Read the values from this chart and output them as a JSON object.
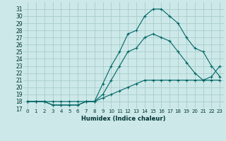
{
  "xlabel": "Humidex (Indice chaleur)",
  "background_color": "#cce8e8",
  "grid_color": "#aacccc",
  "line_color": "#006666",
  "xlim": [
    -0.5,
    23.5
  ],
  "ylim": [
    17,
    32
  ],
  "yticks": [
    17,
    18,
    19,
    20,
    21,
    22,
    23,
    24,
    25,
    26,
    27,
    28,
    29,
    30,
    31
  ],
  "xticks": [
    0,
    1,
    2,
    3,
    4,
    5,
    6,
    7,
    8,
    9,
    10,
    11,
    12,
    13,
    14,
    15,
    16,
    17,
    18,
    19,
    20,
    21,
    22,
    23
  ],
  "series": [
    {
      "x": [
        0,
        1,
        2,
        3,
        4,
        5,
        6,
        7,
        8,
        9,
        10,
        11,
        12,
        13,
        14,
        15,
        16,
        17,
        18,
        19,
        20,
        21,
        22,
        23
      ],
      "y": [
        18,
        18,
        18,
        17.5,
        17.5,
        17.5,
        17.5,
        18,
        18,
        20.5,
        23,
        25,
        27.5,
        28,
        30,
        31,
        31,
        30,
        29,
        27,
        25.5,
        25,
        23,
        21.5
      ]
    },
    {
      "x": [
        0,
        1,
        2,
        3,
        4,
        5,
        6,
        7,
        8,
        9,
        10,
        11,
        12,
        13,
        14,
        15,
        16,
        17,
        18,
        19,
        20,
        21,
        22,
        23
      ],
      "y": [
        18,
        18,
        18,
        17.5,
        17.5,
        17.5,
        17.5,
        18,
        18,
        19,
        21,
        23,
        25,
        25.5,
        27,
        27.5,
        27,
        26.5,
        25,
        23.5,
        22,
        21,
        21.5,
        23
      ]
    },
    {
      "x": [
        0,
        1,
        2,
        3,
        4,
        5,
        6,
        7,
        8,
        9,
        10,
        11,
        12,
        13,
        14,
        15,
        16,
        17,
        18,
        19,
        20,
        21,
        22,
        23
      ],
      "y": [
        18,
        18,
        18,
        18,
        18,
        18,
        18,
        18,
        18,
        18.5,
        19,
        19.5,
        20,
        20.5,
        21,
        21,
        21,
        21,
        21,
        21,
        21,
        21,
        21,
        21
      ]
    }
  ]
}
